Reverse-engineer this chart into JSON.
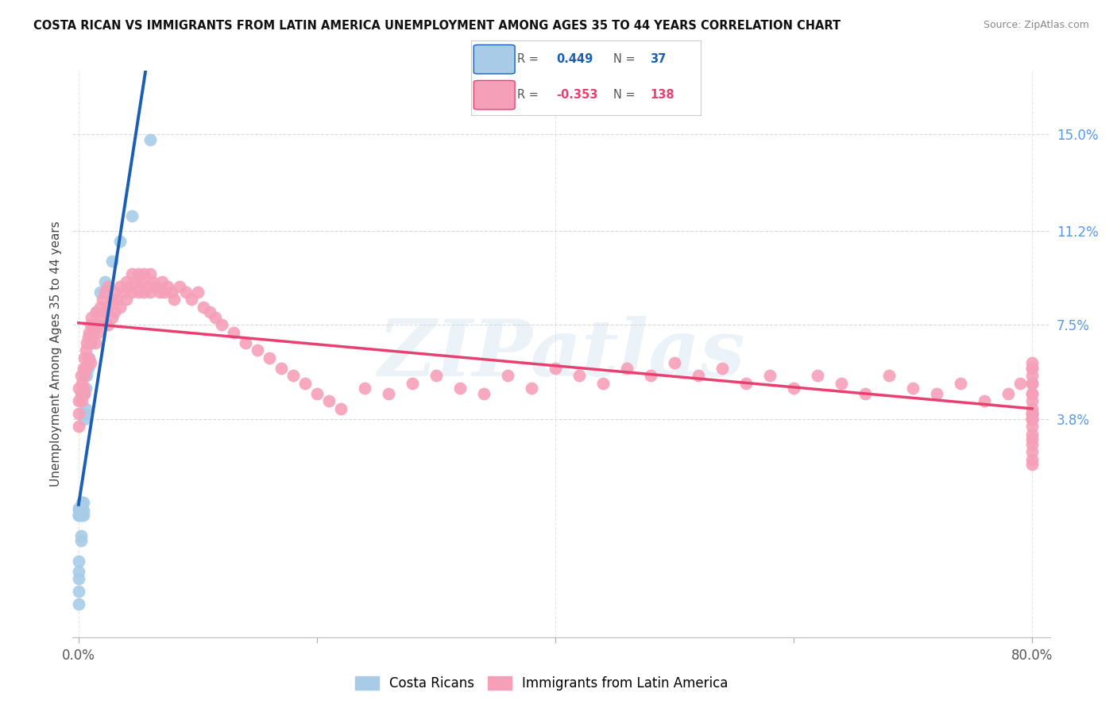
{
  "title": "COSTA RICAN VS IMMIGRANTS FROM LATIN AMERICA UNEMPLOYMENT AMONG AGES 35 TO 44 YEARS CORRELATION CHART",
  "source": "Source: ZipAtlas.com",
  "ylabel": "Unemployment Among Ages 35 to 44 years",
  "xlim": [
    -0.005,
    0.815
  ],
  "ylim": [
    -0.048,
    0.175
  ],
  "right_ytick_vals": [
    0.038,
    0.075,
    0.112,
    0.15
  ],
  "right_ytick_labels": [
    "3.8%",
    "7.5%",
    "11.2%",
    "15.0%"
  ],
  "xtick_vals": [
    0.0,
    0.2,
    0.4,
    0.6,
    0.8
  ],
  "xtick_labels": [
    "0.0%",
    "",
    "",
    "",
    "80.0%"
  ],
  "cr_scatter_color": "#a8cce8",
  "cr_line_color": "#1a5fb4",
  "cr_dash_color": "#88aad0",
  "imm_scatter_color": "#f5a0b8",
  "imm_line_color": "#e84070",
  "watermark_color": "#dce8f4",
  "watermark_text": "ZIPatlas",
  "grid_color": "#d8d8d8",
  "axis_label_color": "#444444",
  "right_tick_color": "#5599ee",
  "title_color": "#111111",
  "source_color": "#888888",
  "legend_border_color": "#cccccc",
  "background_color": "#ffffff",
  "cr_scatter_x": [
    0.0,
    0.0,
    0.0,
    0.0,
    0.0,
    0.0,
    0.0,
    0.0,
    0.0,
    0.0,
    0.002,
    0.002,
    0.002,
    0.002,
    0.003,
    0.003,
    0.003,
    0.004,
    0.004,
    0.004,
    0.005,
    0.005,
    0.005,
    0.006,
    0.006,
    0.007,
    0.008,
    0.009,
    0.01,
    0.012,
    0.015,
    0.018,
    0.022,
    0.028,
    0.035,
    0.045,
    0.06
  ],
  "cr_scatter_y": [
    -0.035,
    -0.03,
    -0.025,
    -0.022,
    -0.018,
    0.0,
    0.0,
    0.0,
    0.002,
    0.003,
    -0.01,
    -0.008,
    0.0,
    0.002,
    0.0,
    0.002,
    0.005,
    0.0,
    0.002,
    0.005,
    0.038,
    0.04,
    0.048,
    0.042,
    0.05,
    0.055,
    0.058,
    0.062,
    0.068,
    0.075,
    0.08,
    0.088,
    0.092,
    0.1,
    0.108,
    0.118,
    0.148
  ],
  "imm_scatter_x": [
    0.0,
    0.0,
    0.0,
    0.0,
    0.002,
    0.002,
    0.003,
    0.003,
    0.004,
    0.004,
    0.005,
    0.005,
    0.005,
    0.006,
    0.006,
    0.007,
    0.008,
    0.008,
    0.009,
    0.01,
    0.01,
    0.01,
    0.011,
    0.012,
    0.013,
    0.014,
    0.015,
    0.016,
    0.017,
    0.018,
    0.02,
    0.02,
    0.022,
    0.022,
    0.025,
    0.025,
    0.025,
    0.028,
    0.028,
    0.03,
    0.03,
    0.032,
    0.035,
    0.035,
    0.038,
    0.04,
    0.04,
    0.042,
    0.045,
    0.045,
    0.048,
    0.05,
    0.05,
    0.052,
    0.055,
    0.055,
    0.058,
    0.06,
    0.06,
    0.062,
    0.065,
    0.068,
    0.07,
    0.072,
    0.075,
    0.078,
    0.08,
    0.085,
    0.09,
    0.095,
    0.1,
    0.105,
    0.11,
    0.115,
    0.12,
    0.13,
    0.14,
    0.15,
    0.16,
    0.17,
    0.18,
    0.19,
    0.2,
    0.21,
    0.22,
    0.24,
    0.26,
    0.28,
    0.3,
    0.32,
    0.34,
    0.36,
    0.38,
    0.4,
    0.42,
    0.44,
    0.46,
    0.48,
    0.5,
    0.52,
    0.54,
    0.56,
    0.58,
    0.6,
    0.62,
    0.64,
    0.66,
    0.68,
    0.7,
    0.72,
    0.74,
    0.76,
    0.78,
    0.79,
    0.8,
    0.8,
    0.8,
    0.8,
    0.8,
    0.8,
    0.8,
    0.8,
    0.8,
    0.8,
    0.8,
    0.8,
    0.8,
    0.8,
    0.8,
    0.8,
    0.8,
    0.8,
    0.8,
    0.8,
    0.8,
    0.8,
    0.8,
    0.8
  ],
  "imm_scatter_y": [
    0.05,
    0.045,
    0.04,
    0.035,
    0.055,
    0.048,
    0.052,
    0.045,
    0.058,
    0.05,
    0.062,
    0.055,
    0.048,
    0.065,
    0.058,
    0.068,
    0.07,
    0.062,
    0.072,
    0.075,
    0.068,
    0.06,
    0.078,
    0.072,
    0.075,
    0.068,
    0.08,
    0.072,
    0.075,
    0.082,
    0.085,
    0.078,
    0.088,
    0.08,
    0.09,
    0.082,
    0.075,
    0.085,
    0.078,
    0.088,
    0.08,
    0.085,
    0.09,
    0.082,
    0.088,
    0.092,
    0.085,
    0.09,
    0.095,
    0.088,
    0.092,
    0.095,
    0.088,
    0.092,
    0.095,
    0.088,
    0.09,
    0.095,
    0.088,
    0.092,
    0.09,
    0.088,
    0.092,
    0.088,
    0.09,
    0.088,
    0.085,
    0.09,
    0.088,
    0.085,
    0.088,
    0.082,
    0.08,
    0.078,
    0.075,
    0.072,
    0.068,
    0.065,
    0.062,
    0.058,
    0.055,
    0.052,
    0.048,
    0.045,
    0.042,
    0.05,
    0.048,
    0.052,
    0.055,
    0.05,
    0.048,
    0.055,
    0.05,
    0.058,
    0.055,
    0.052,
    0.058,
    0.055,
    0.06,
    0.055,
    0.058,
    0.052,
    0.055,
    0.05,
    0.055,
    0.052,
    0.048,
    0.055,
    0.05,
    0.048,
    0.052,
    0.045,
    0.048,
    0.052,
    0.06,
    0.055,
    0.048,
    0.045,
    0.04,
    0.038,
    0.042,
    0.035,
    0.04,
    0.038,
    0.032,
    0.058,
    0.052,
    0.04,
    0.038,
    0.028,
    0.025,
    0.02,
    0.058,
    0.052,
    0.048,
    0.038,
    0.03,
    0.022
  ]
}
